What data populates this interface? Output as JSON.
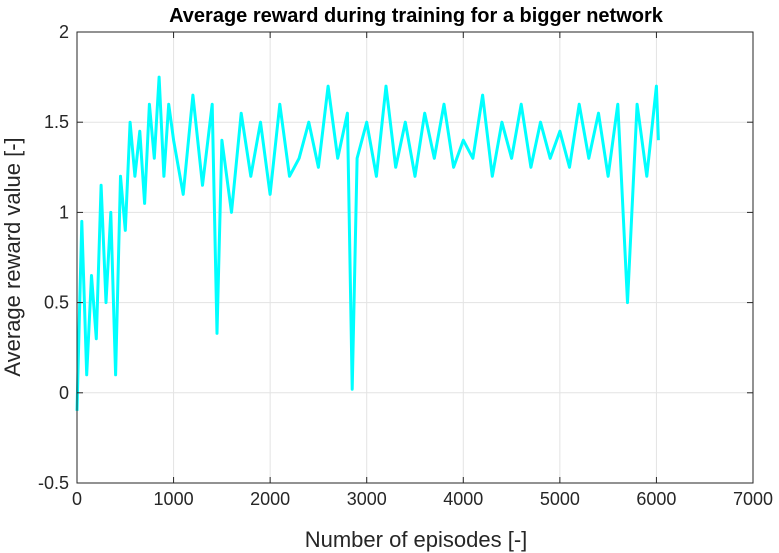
{
  "chart_data": {
    "type": "line",
    "title": "Average reward during training for a bigger network",
    "xlabel": "Number of episodes [-]",
    "ylabel": "Average reward value [-]",
    "xlim": [
      0,
      7000
    ],
    "ylim": [
      -0.5,
      2
    ],
    "xticks": [
      0,
      1000,
      2000,
      3000,
      4000,
      5000,
      6000,
      7000
    ],
    "xtick_labels": [
      "0",
      "1000",
      "2000",
      "3000",
      "4000",
      "5000",
      "6000",
      "7000"
    ],
    "yticks": [
      -0.5,
      0,
      0.5,
      1,
      1.5,
      2
    ],
    "ytick_labels": [
      "-0.5",
      "0",
      "0.5",
      "1",
      "1.5",
      "2"
    ],
    "grid": true,
    "legend": "none",
    "series": [
      {
        "color": "#00FFFF",
        "x": [
          0,
          50,
          100,
          150,
          200,
          250,
          300,
          350,
          400,
          450,
          500,
          550,
          600,
          650,
          700,
          750,
          800,
          850,
          900,
          950,
          1000,
          1100,
          1200,
          1300,
          1400,
          1450,
          1500,
          1600,
          1700,
          1800,
          1900,
          2000,
          2100,
          2200,
          2300,
          2400,
          2500,
          2600,
          2700,
          2800,
          2850,
          2900,
          3000,
          3100,
          3200,
          3300,
          3400,
          3500,
          3600,
          3700,
          3800,
          3900,
          4000,
          4100,
          4200,
          4300,
          4400,
          4500,
          4600,
          4700,
          4800,
          4900,
          5000,
          5100,
          5200,
          5300,
          5400,
          5500,
          5600,
          5700,
          5800,
          5900,
          6000,
          6020
        ],
        "y": [
          -0.1,
          0.95,
          0.1,
          0.65,
          0.3,
          1.15,
          0.5,
          1.0,
          0.1,
          1.2,
          0.9,
          1.5,
          1.2,
          1.45,
          1.05,
          1.6,
          1.3,
          1.75,
          1.2,
          1.6,
          1.4,
          1.1,
          1.65,
          1.15,
          1.6,
          0.33,
          1.4,
          1.0,
          1.55,
          1.2,
          1.5,
          1.1,
          1.6,
          1.2,
          1.3,
          1.5,
          1.25,
          1.7,
          1.3,
          1.55,
          0.02,
          1.3,
          1.5,
          1.2,
          1.7,
          1.25,
          1.5,
          1.2,
          1.55,
          1.3,
          1.6,
          1.25,
          1.4,
          1.3,
          1.65,
          1.2,
          1.5,
          1.3,
          1.6,
          1.25,
          1.5,
          1.3,
          1.45,
          1.25,
          1.6,
          1.3,
          1.55,
          1.2,
          1.6,
          0.5,
          1.6,
          1.2,
          1.7,
          1.4
        ]
      }
    ]
  }
}
